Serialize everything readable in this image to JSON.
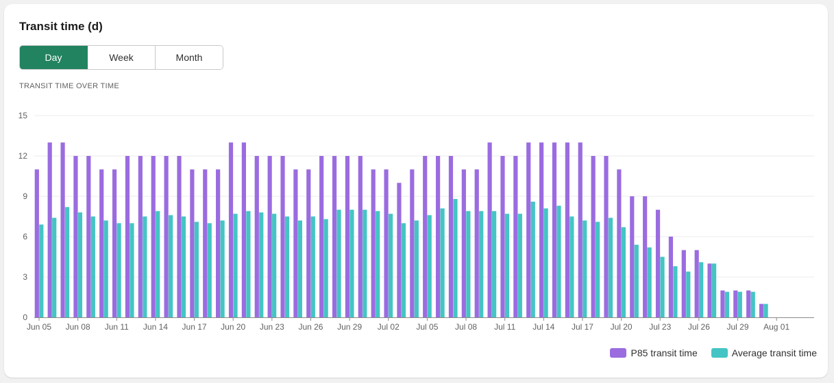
{
  "card": {
    "title": "Transit time (d)",
    "tabs": [
      "Day",
      "Week",
      "Month"
    ],
    "active_tab": "Day",
    "subtitle": "TRANSIT TIME OVER TIME"
  },
  "colors": {
    "p85": "#9b6ce0",
    "avg": "#45c4c4",
    "accent": "#218360"
  },
  "chart_data": {
    "type": "bar",
    "title": "",
    "xlabel": "",
    "ylabel": "",
    "ylim": [
      0,
      15
    ],
    "yticks": [
      0,
      3,
      6,
      9,
      12,
      15
    ],
    "categories": [
      "Jun 05",
      "Jun 06",
      "Jun 07",
      "Jun 08",
      "Jun 09",
      "Jun 10",
      "Jun 11",
      "Jun 12",
      "Jun 13",
      "Jun 14",
      "Jun 15",
      "Jun 16",
      "Jun 17",
      "Jun 18",
      "Jun 19",
      "Jun 20",
      "Jun 21",
      "Jun 22",
      "Jun 23",
      "Jun 24",
      "Jun 25",
      "Jun 26",
      "Jun 27",
      "Jun 28",
      "Jun 29",
      "Jun 30",
      "Jul 01",
      "Jul 02",
      "Jul 03",
      "Jul 04",
      "Jul 05",
      "Jul 06",
      "Jul 07",
      "Jul 08",
      "Jul 09",
      "Jul 10",
      "Jul 11",
      "Jul 12",
      "Jul 13",
      "Jul 14",
      "Jul 15",
      "Jul 16",
      "Jul 17",
      "Jul 18",
      "Jul 19",
      "Jul 20",
      "Jul 21",
      "Jul 22",
      "Jul 23",
      "Jul 24",
      "Jul 25",
      "Jul 26",
      "Jul 27",
      "Jul 28",
      "Jul 29",
      "Jul 30",
      "Jul 31",
      "Aug 01",
      "Aug 02"
    ],
    "xtick_labels": [
      "Jun 05",
      "Jun 08",
      "Jun 11",
      "Jun 14",
      "Jun 17",
      "Jun 20",
      "Jun 23",
      "Jun 26",
      "Jun 29",
      "Jul 02",
      "Jul 05",
      "Jul 08",
      "Jul 11",
      "Jul 14",
      "Jul 17",
      "Jul 20",
      "Jul 23",
      "Jul 26",
      "Jul 29",
      "Aug 01"
    ],
    "series": [
      {
        "name": "P85 transit time",
        "values": [
          11,
          13,
          13,
          12,
          12,
          11,
          11,
          12,
          12,
          12,
          12,
          12,
          11,
          11,
          11,
          13,
          13,
          12,
          12,
          12,
          11,
          11,
          12,
          12,
          12,
          12,
          11,
          11,
          10,
          11,
          12,
          12,
          12,
          11,
          11,
          13,
          12,
          12,
          13,
          13,
          13,
          13,
          13,
          12,
          12,
          11,
          9,
          9,
          8,
          6,
          5,
          5,
          4,
          2,
          2,
          2,
          1,
          0,
          0
        ]
      },
      {
        "name": "Average transit time",
        "values": [
          6.9,
          7.4,
          8.2,
          7.8,
          7.5,
          7.2,
          7.0,
          7.0,
          7.5,
          7.9,
          7.6,
          7.5,
          7.1,
          7.0,
          7.2,
          7.7,
          7.9,
          7.8,
          7.7,
          7.5,
          7.2,
          7.5,
          7.3,
          8.0,
          8.0,
          8.0,
          7.9,
          7.7,
          7.0,
          7.2,
          7.6,
          8.1,
          8.8,
          7.9,
          7.9,
          7.9,
          7.7,
          7.7,
          8.6,
          8.1,
          8.3,
          7.5,
          7.2,
          7.1,
          7.4,
          6.7,
          5.4,
          5.2,
          4.5,
          3.8,
          3.4,
          4.1,
          4.0,
          1.9,
          1.9,
          1.9,
          1.0,
          0,
          0
        ]
      }
    ],
    "legend_position": "bottom-right",
    "grid": true
  }
}
